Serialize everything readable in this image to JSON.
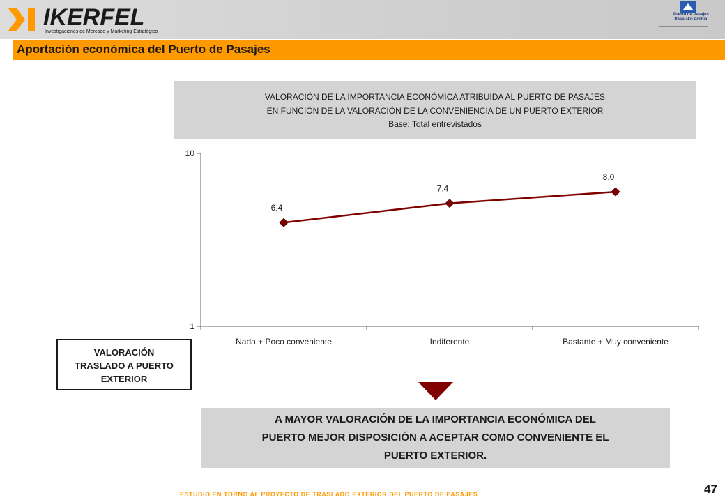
{
  "header": {
    "brand": "IKERFEL",
    "tagline": "Investigaciones de Mercado y Marketing Estratégico",
    "partner_line1": "Puerto de Pasajes",
    "partner_line2": "Pasaiako Portua",
    "section_title": "Aportación económica del Puerto de Pasajes"
  },
  "chart_box": {
    "line1": "VALORACIÓN DE LA IMPORTANCIA ECONÓMICA ATRIBUIDA AL PUERTO DE PASAJES",
    "line2": "EN FUNCIÓN DE LA VALORACIÓN DE LA CONVENIENCIA DE UN PUERTO EXTERIOR",
    "line3": "Base: Total entrevistados"
  },
  "chart_data": {
    "type": "line",
    "categories": [
      "Nada + Poco conveniente",
      "Indiferente",
      "Bastante + Muy conveniente"
    ],
    "values": [
      6.4,
      7.4,
      8.0
    ],
    "data_labels": [
      "6,4",
      "7,4",
      "8,0"
    ],
    "ylim": [
      1,
      10
    ],
    "y_ticks": [
      "1",
      "10"
    ],
    "xlabel_lines": [
      "VALORACIÓN",
      "TRASLADO A PUERTO",
      "EXTERIOR"
    ],
    "grid": false,
    "colors": {
      "line": "#800000",
      "marker": "#800000"
    }
  },
  "conclusion": {
    "line1": "A MAYOR VALORACIÓN DE LA IMPORTANCIA ECONÓMICA DEL",
    "line2": "PUERTO MEJOR DISPOSICIÓN A ACEPTAR COMO CONVENIENTE EL",
    "line3": "PUERTO EXTERIOR."
  },
  "footer": {
    "text": "ESTUDIO EN TORNO AL PROYECTO DE TRASLADO EXTERIOR DEL PUERTO DE PASAJES",
    "page": "47"
  },
  "colors": {
    "accent": "#ff9900",
    "panel": "#d4d4d4",
    "series": "#800000"
  }
}
